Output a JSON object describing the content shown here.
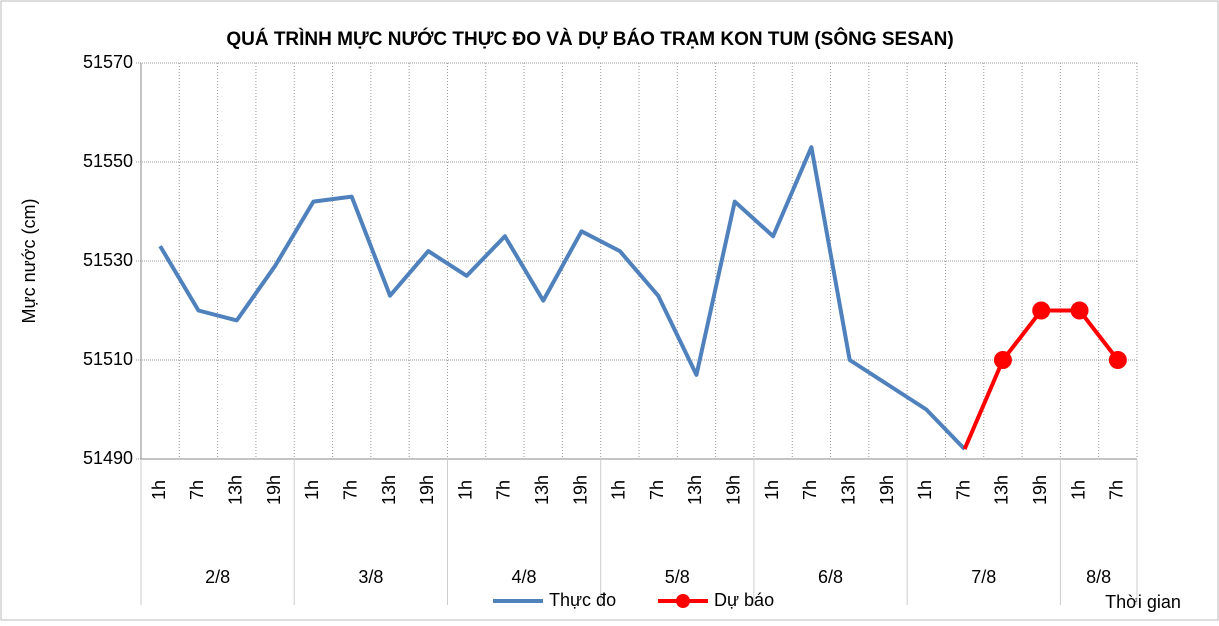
{
  "chart_data": {
    "type": "line",
    "title": "QUÁ TRÌNH MỰC NƯỚC THỰC ĐO VÀ DỰ BÁO TRẠM KON TUM (SÔNG SESAN)",
    "y_label": "Mực nước (cm)",
    "x_label": "Thời gian",
    "categories": [
      "1h",
      "7h",
      "13h",
      "19h",
      "1h",
      "7h",
      "13h",
      "19h",
      "1h",
      "7h",
      "13h",
      "19h",
      "1h",
      "7h",
      "13h",
      "19h",
      "1h",
      "7h",
      "13h",
      "19h",
      "1h",
      "7h",
      "13h",
      "19h",
      "1h",
      "7h"
    ],
    "date_groups": [
      {
        "label": "2/8",
        "count": 4
      },
      {
        "label": "3/8",
        "count": 4
      },
      {
        "label": "4/8",
        "count": 4
      },
      {
        "label": "5/8",
        "count": 4
      },
      {
        "label": "6/8",
        "count": 4
      },
      {
        "label": "7/8",
        "count": 4
      },
      {
        "label": "8/8",
        "count": 2
      }
    ],
    "series": [
      {
        "name": "Thực đo",
        "color": "#4f81bd",
        "values": [
          51533,
          51520,
          51518,
          51529,
          51542,
          51543,
          51523,
          51532,
          51527,
          51535,
          51522,
          51536,
          51532,
          51523,
          51507,
          51542,
          51535,
          51553,
          51510,
          51505,
          51500,
          51492,
          null,
          null,
          null,
          null
        ]
      },
      {
        "name": "Dự báo",
        "color": "#ff0000",
        "markers": true,
        "values": [
          null,
          null,
          null,
          null,
          null,
          null,
          null,
          null,
          null,
          null,
          null,
          null,
          null,
          null,
          null,
          null,
          null,
          null,
          null,
          null,
          null,
          51492,
          51510,
          51520,
          51520,
          51510
        ]
      }
    ],
    "ylim": [
      51490,
      51570
    ],
    "yticks": [
      51490,
      51510,
      51530,
      51550,
      51570
    ],
    "grid": true
  }
}
